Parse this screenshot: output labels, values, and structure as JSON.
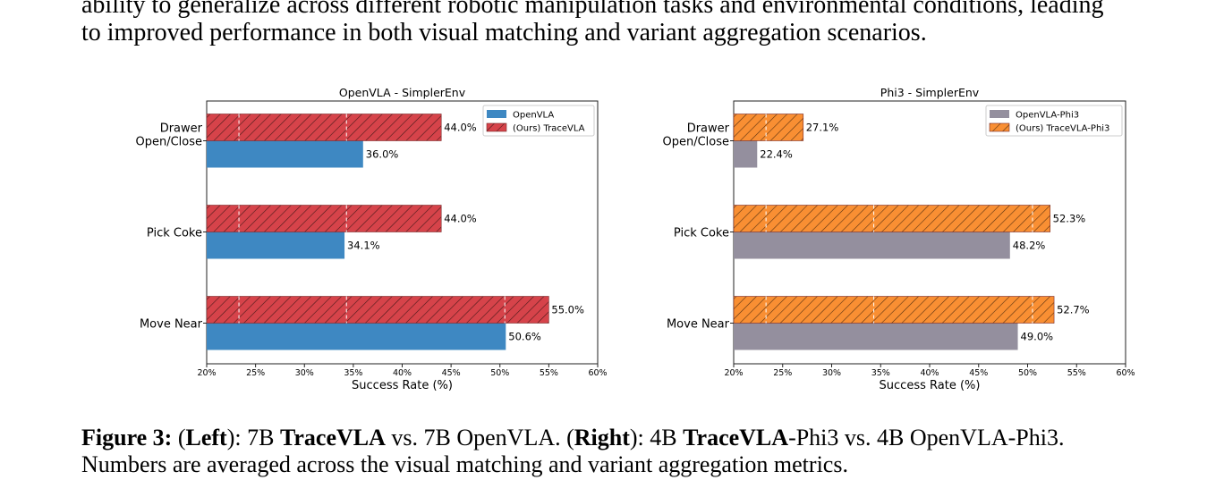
{
  "body_text": {
    "lines": [
      "ability to generalize across different robotic manipulation tasks and environmental conditions, leading",
      "to improved performance in both visual matching and variant aggregation scenarios."
    ]
  },
  "caption": {
    "label": "Figure 3:",
    "p1": "(",
    "left": "Left",
    "p2": "): 7B ",
    "m1": "TraceVLA",
    "p3": " vs. 7B OpenVLA. (",
    "right": "Right",
    "p4": "): 4B ",
    "m2": "TraceVLA",
    "p5": "-Phi3 vs. 4B OpenVLA-Phi3.",
    "line2": "Numbers are averaged across the visual matching and variant aggregation metrics."
  },
  "colors": {
    "openvla": "#3e88c2",
    "tracevla": "#d6434a",
    "openvla_phi3": "#948f9e",
    "tracevla_phi3": "#f98f33"
  },
  "chart_data": [
    {
      "type": "bar",
      "orientation": "horizontal",
      "title": "OpenVLA - SimplerEnv",
      "xlabel": "Success Rate (%)",
      "xlim": [
        20,
        60
      ],
      "xticks": [
        "20%",
        "25%",
        "30%",
        "35%",
        "40%",
        "45%",
        "50%",
        "55%",
        "60%"
      ],
      "categories": [
        "Drawer\nOpen/Close",
        "Pick Coke",
        "Move Near"
      ],
      "legend_position": "top-right",
      "series": [
        {
          "name": "OpenVLA",
          "values": [
            36.0,
            34.1,
            50.6
          ],
          "labels": [
            "36.0%",
            "34.1%",
            "50.6%"
          ],
          "hatch": false
        },
        {
          "name": "(Ours) TraceVLA",
          "values": [
            44.0,
            44.0,
            55.0
          ],
          "labels": [
            "44.0%",
            "44.0%",
            "55.0%"
          ],
          "hatch": true
        }
      ]
    },
    {
      "type": "bar",
      "orientation": "horizontal",
      "title": "Phi3 - SimplerEnv",
      "xlabel": "Success Rate (%)",
      "xlim": [
        20,
        60
      ],
      "xticks": [
        "20%",
        "25%",
        "30%",
        "35%",
        "40%",
        "45%",
        "50%",
        "55%",
        "60%"
      ],
      "categories": [
        "Drawer\nOpen/Close",
        "Pick Coke",
        "Move Near"
      ],
      "legend_position": "top-right",
      "series": [
        {
          "name": "OpenVLA-Phi3",
          "values": [
            22.4,
            48.2,
            49.0
          ],
          "labels": [
            "22.4%",
            "48.2%",
            "49.0%"
          ],
          "hatch": false
        },
        {
          "name": "(Ours) TraceVLA-Phi3",
          "values": [
            27.1,
            52.3,
            52.7
          ],
          "labels": [
            "27.1%",
            "52.3%",
            "52.7%"
          ],
          "hatch": true
        }
      ]
    }
  ]
}
